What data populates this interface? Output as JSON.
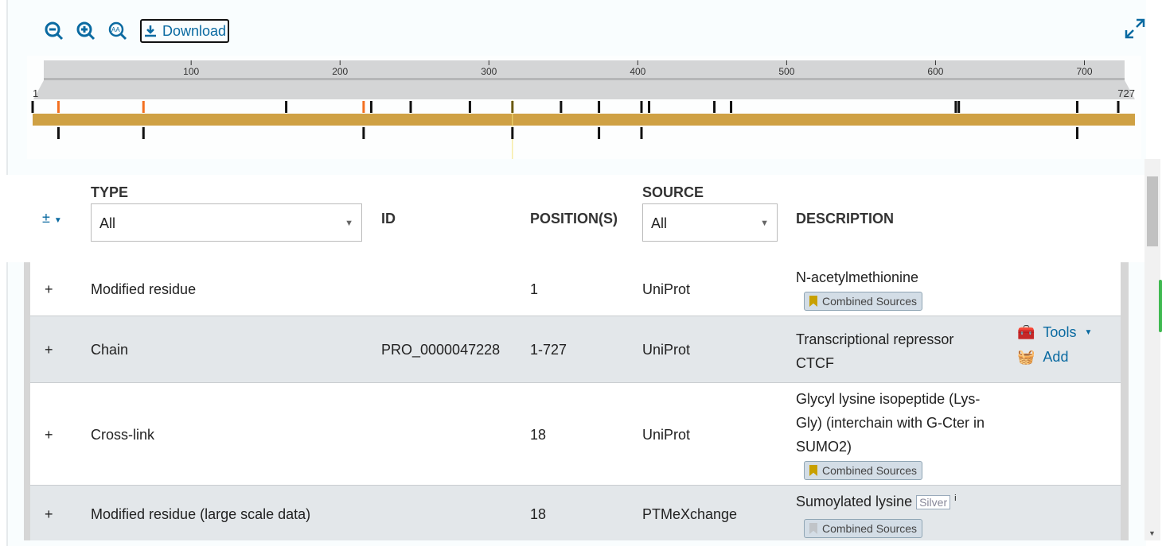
{
  "toolbar": {
    "zoom_out": "zoom-out",
    "zoom_in": "zoom-in",
    "text_size": "text-size",
    "download_label": "Download"
  },
  "track": {
    "start": "1",
    "end": "727",
    "length": 727,
    "ruler_ticks": [
      "100",
      "200",
      "300",
      "400",
      "500",
      "600",
      "700"
    ],
    "bar_color": "#cfa144",
    "top_marks": [
      {
        "p": 1,
        "c": "#111"
      },
      {
        "p": 18,
        "c": "#f37021"
      },
      {
        "p": 74,
        "c": "#f37021"
      },
      {
        "p": 168,
        "c": "#111"
      },
      {
        "p": 219,
        "c": "#f37021"
      },
      {
        "p": 224,
        "c": "#111"
      },
      {
        "p": 250,
        "c": "#111"
      },
      {
        "p": 289,
        "c": "#111"
      },
      {
        "p": 317,
        "c": "#6b5a10"
      },
      {
        "p": 349,
        "c": "#111"
      },
      {
        "p": 374,
        "c": "#111"
      },
      {
        "p": 402,
        "c": "#111"
      },
      {
        "p": 407,
        "c": "#111"
      },
      {
        "p": 450,
        "c": "#111"
      },
      {
        "p": 461,
        "c": "#111"
      },
      {
        "p": 609,
        "c": "#111"
      },
      {
        "p": 611,
        "c": "#111"
      },
      {
        "p": 689,
        "c": "#111"
      },
      {
        "p": 716,
        "c": "#111"
      }
    ],
    "bottom_marks": [
      18,
      74,
      219,
      317,
      374,
      402,
      689
    ],
    "highlight": 317
  },
  "table": {
    "expand_toggle": "±",
    "headers": {
      "type": "TYPE",
      "id": "ID",
      "positions": "POSITION(S)",
      "source": "SOURCE",
      "description": "DESCRIPTION"
    },
    "type_filter": "All",
    "source_filter": "All",
    "rows": [
      {
        "toggle": "+",
        "type": "Modified residue",
        "id": "",
        "pos": "1",
        "source": "UniProt",
        "desc": "N-acetylmethionine",
        "evidence": "Combined Sources",
        "evidence_color": "#c8a000"
      },
      {
        "toggle": "+",
        "type": "Chain",
        "id": "PRO_0000047228",
        "pos": "1-727",
        "source": "UniProt",
        "desc": "Transcriptional repressor CTCF",
        "tools": "Tools",
        "add": "Add"
      },
      {
        "toggle": "+",
        "type": "Cross-link",
        "id": "",
        "pos": "18",
        "source": "UniProt",
        "desc": "Glycyl lysine isopeptide (Lys-Gly) (interchain with G-Cter in SUMO2)",
        "evidence": "Combined Sources",
        "evidence_color": "#c8a000"
      },
      {
        "toggle": "+",
        "type": "Modified residue (large scale data)",
        "id": "",
        "pos": "18",
        "source": "PTMeXchange",
        "desc": "Sumoylated lysine",
        "quality": "Silver",
        "info": "i",
        "evidence": "Combined Sources",
        "evidence_color": "#c0c4c8"
      }
    ]
  }
}
